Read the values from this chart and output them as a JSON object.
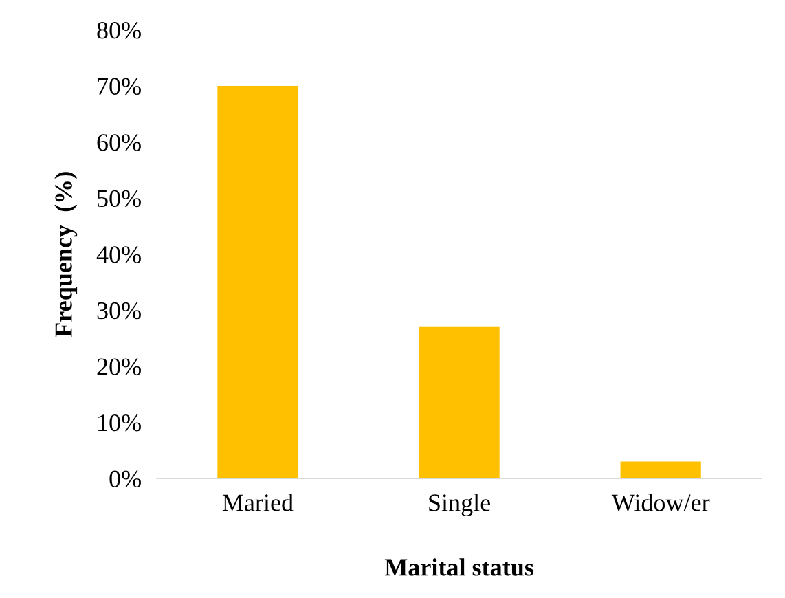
{
  "chart_data": {
    "type": "bar",
    "xlabel": "Marital status",
    "ylabel": "Frequency  (%)",
    "categories": [
      "Maried",
      "Single",
      "Widow/er"
    ],
    "values": [
      70,
      27,
      3
    ],
    "color": "#ffc000",
    "ylim": [
      0,
      80
    ],
    "yticks": [
      {
        "value": 0,
        "label": "0%"
      },
      {
        "value": 10,
        "label": "10%"
      },
      {
        "value": 20,
        "label": "20%"
      },
      {
        "value": 30,
        "label": "30%"
      },
      {
        "value": 40,
        "label": "40%"
      },
      {
        "value": 50,
        "label": "50%"
      },
      {
        "value": 60,
        "label": "60%"
      },
      {
        "value": 70,
        "label": "70%"
      },
      {
        "value": 80,
        "label": "80%"
      }
    ],
    "grid": false,
    "legend": false
  }
}
